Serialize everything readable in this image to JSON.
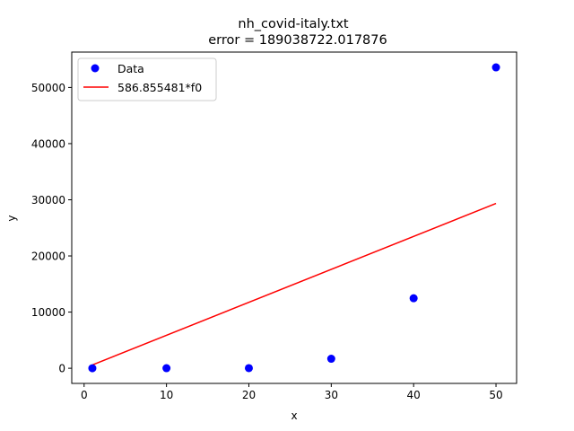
{
  "chart_data": {
    "type": "scatter",
    "title_line1": "nh_covid-italy.txt",
    "title_line2": "error  = 189038722.017876",
    "xlabel": "x",
    "ylabel": "y",
    "xlim": [
      -1.5,
      52.5
    ],
    "ylim": [
      -2700,
      56300
    ],
    "xticks": [
      0,
      10,
      20,
      30,
      40,
      50
    ],
    "yticks": [
      0,
      10000,
      20000,
      30000,
      40000,
      50000
    ],
    "grid": false,
    "legend_position": "upper-left",
    "series": [
      {
        "name": "Data",
        "kind": "points",
        "color": "#0000ff",
        "x": [
          1,
          10,
          20,
          30,
          40,
          50
        ],
        "y": [
          3,
          10,
          21,
          1694,
          12462,
          53578
        ]
      },
      {
        "name": "586.855481*f0",
        "kind": "line",
        "color": "#ff0000",
        "x": [
          1,
          50
        ],
        "y": [
          586.855481,
          29342.77405
        ]
      }
    ]
  }
}
